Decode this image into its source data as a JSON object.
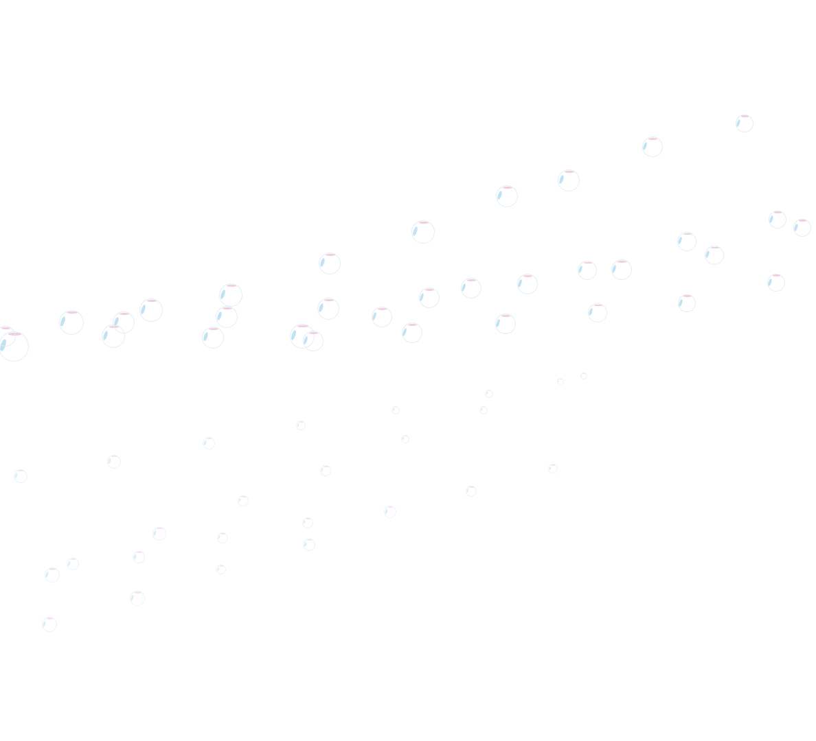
{
  "scene": {
    "background_color": "#ffffff",
    "bubble_highlight_color": "#bfe0f2",
    "bubble_rim_color": "#f0c8dc",
    "decoration": "soap-bubble-icon"
  }
}
